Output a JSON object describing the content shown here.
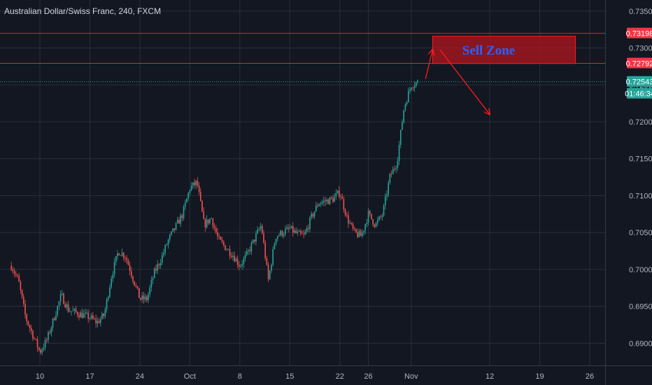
{
  "header": {
    "title": "Australian Dollar/Swiss Franc, 240, FXCM"
  },
  "colors": {
    "background": "#131722",
    "grid": "#2a2e39",
    "up": "#26a69a",
    "down": "#ef5350",
    "level_line": "#ff1a1a",
    "zone_fill": "#b2161d",
    "zone_text": "#2962ff",
    "price_tag": "#26a69a",
    "level_tag": "#f23645",
    "axis_text": "#b2b5be"
  },
  "annotations": {
    "zone_label": "Sell Zone",
    "price_tag": "0.72543",
    "countdown_tag": "01:46:34",
    "level_tags": [
      "0.73198",
      "0.72792"
    ]
  },
  "chart_data": {
    "type": "candlestick",
    "title": "Australian Dollar/Swiss Franc, 240, FXCM",
    "timeframe": "240",
    "ylim": [
      0.687,
      0.7365
    ],
    "y_ticks": [
      "0.69000",
      "0.69500",
      "0.70000",
      "0.70500",
      "0.71000",
      "0.71500",
      "0.72000",
      "0.72500",
      "0.73000",
      "0.73500"
    ],
    "x_ticks": [
      "10",
      "17",
      "24",
      "Oct",
      "8",
      "15",
      "22",
      "26",
      "Nov",
      "12",
      "19",
      "26"
    ],
    "grid": true,
    "price_path": [
      [
        "Sep 06",
        0.7005
      ],
      [
        "Sep 07",
        0.6985
      ],
      [
        "Sep 08",
        0.6935
      ],
      [
        "Sep 10",
        0.6888
      ],
      [
        "Sep 11",
        0.6905
      ],
      [
        "Sep 12",
        0.6935
      ],
      [
        "Sep 13",
        0.6965
      ],
      [
        "Sep 14",
        0.6945
      ],
      [
        "Sep 17",
        0.6935
      ],
      [
        "Sep 18",
        0.6928
      ],
      [
        "Sep 19",
        0.6938
      ],
      [
        "Sep 20",
        0.699
      ],
      [
        "Sep 21",
        0.7025
      ],
      [
        "Sep 22",
        0.7018
      ],
      [
        "Sep 24",
        0.696
      ],
      [
        "Sep 25",
        0.696
      ],
      [
        "Sep 26",
        0.6995
      ],
      [
        "Sep 27",
        0.7015
      ],
      [
        "Sep 28",
        0.704
      ],
      [
        "Sep 30",
        0.7075
      ],
      [
        "Oct 01",
        0.711
      ],
      [
        "Oct 02",
        0.7118
      ],
      [
        "Oct 03",
        0.706
      ],
      [
        "Oct 04",
        0.707
      ],
      [
        "Oct 05",
        0.704
      ],
      [
        "Oct 07",
        0.702
      ],
      [
        "Oct 08",
        0.7005
      ],
      [
        "Oct 09",
        0.702
      ],
      [
        "Oct 10",
        0.704
      ],
      [
        "Oct 11",
        0.706
      ],
      [
        "Oct 12",
        0.6985
      ],
      [
        "Oct 13",
        0.7045
      ],
      [
        "Oct 15",
        0.7055
      ],
      [
        "Oct 16",
        0.7048
      ],
      [
        "Oct 17",
        0.7045
      ],
      [
        "Oct 18",
        0.707
      ],
      [
        "Oct 19",
        0.709
      ],
      [
        "Oct 21",
        0.7095
      ],
      [
        "Oct 22",
        0.7105
      ],
      [
        "Oct 23",
        0.707
      ],
      [
        "Oct 24",
        0.705
      ],
      [
        "Oct 25",
        0.7045
      ],
      [
        "Oct 26",
        0.7075
      ],
      [
        "Oct 27",
        0.706
      ],
      [
        "Oct 28",
        0.7075
      ],
      [
        "Oct 29",
        0.7125
      ],
      [
        "Oct 30",
        0.7145
      ],
      [
        "Oct 31",
        0.722
      ],
      [
        "Nov 01",
        0.725
      ],
      [
        "Nov 02",
        0.7254
      ]
    ],
    "horizontal_levels": [
      0.73198,
      0.72792
    ],
    "last_price": 0.72543,
    "zone": {
      "label": "Sell Zone",
      "from": "Nov 04",
      "to": "Nov 24",
      "y_low": 0.7279,
      "y_high": 0.7316
    },
    "arrows": [
      {
        "from": [
          "Nov 03",
          0.7258
        ],
        "to": [
          "Nov 04",
          0.7298
        ]
      },
      {
        "from": [
          "Nov 05",
          0.7298
        ],
        "to": [
          "Nov 12",
          0.721
        ]
      }
    ]
  }
}
